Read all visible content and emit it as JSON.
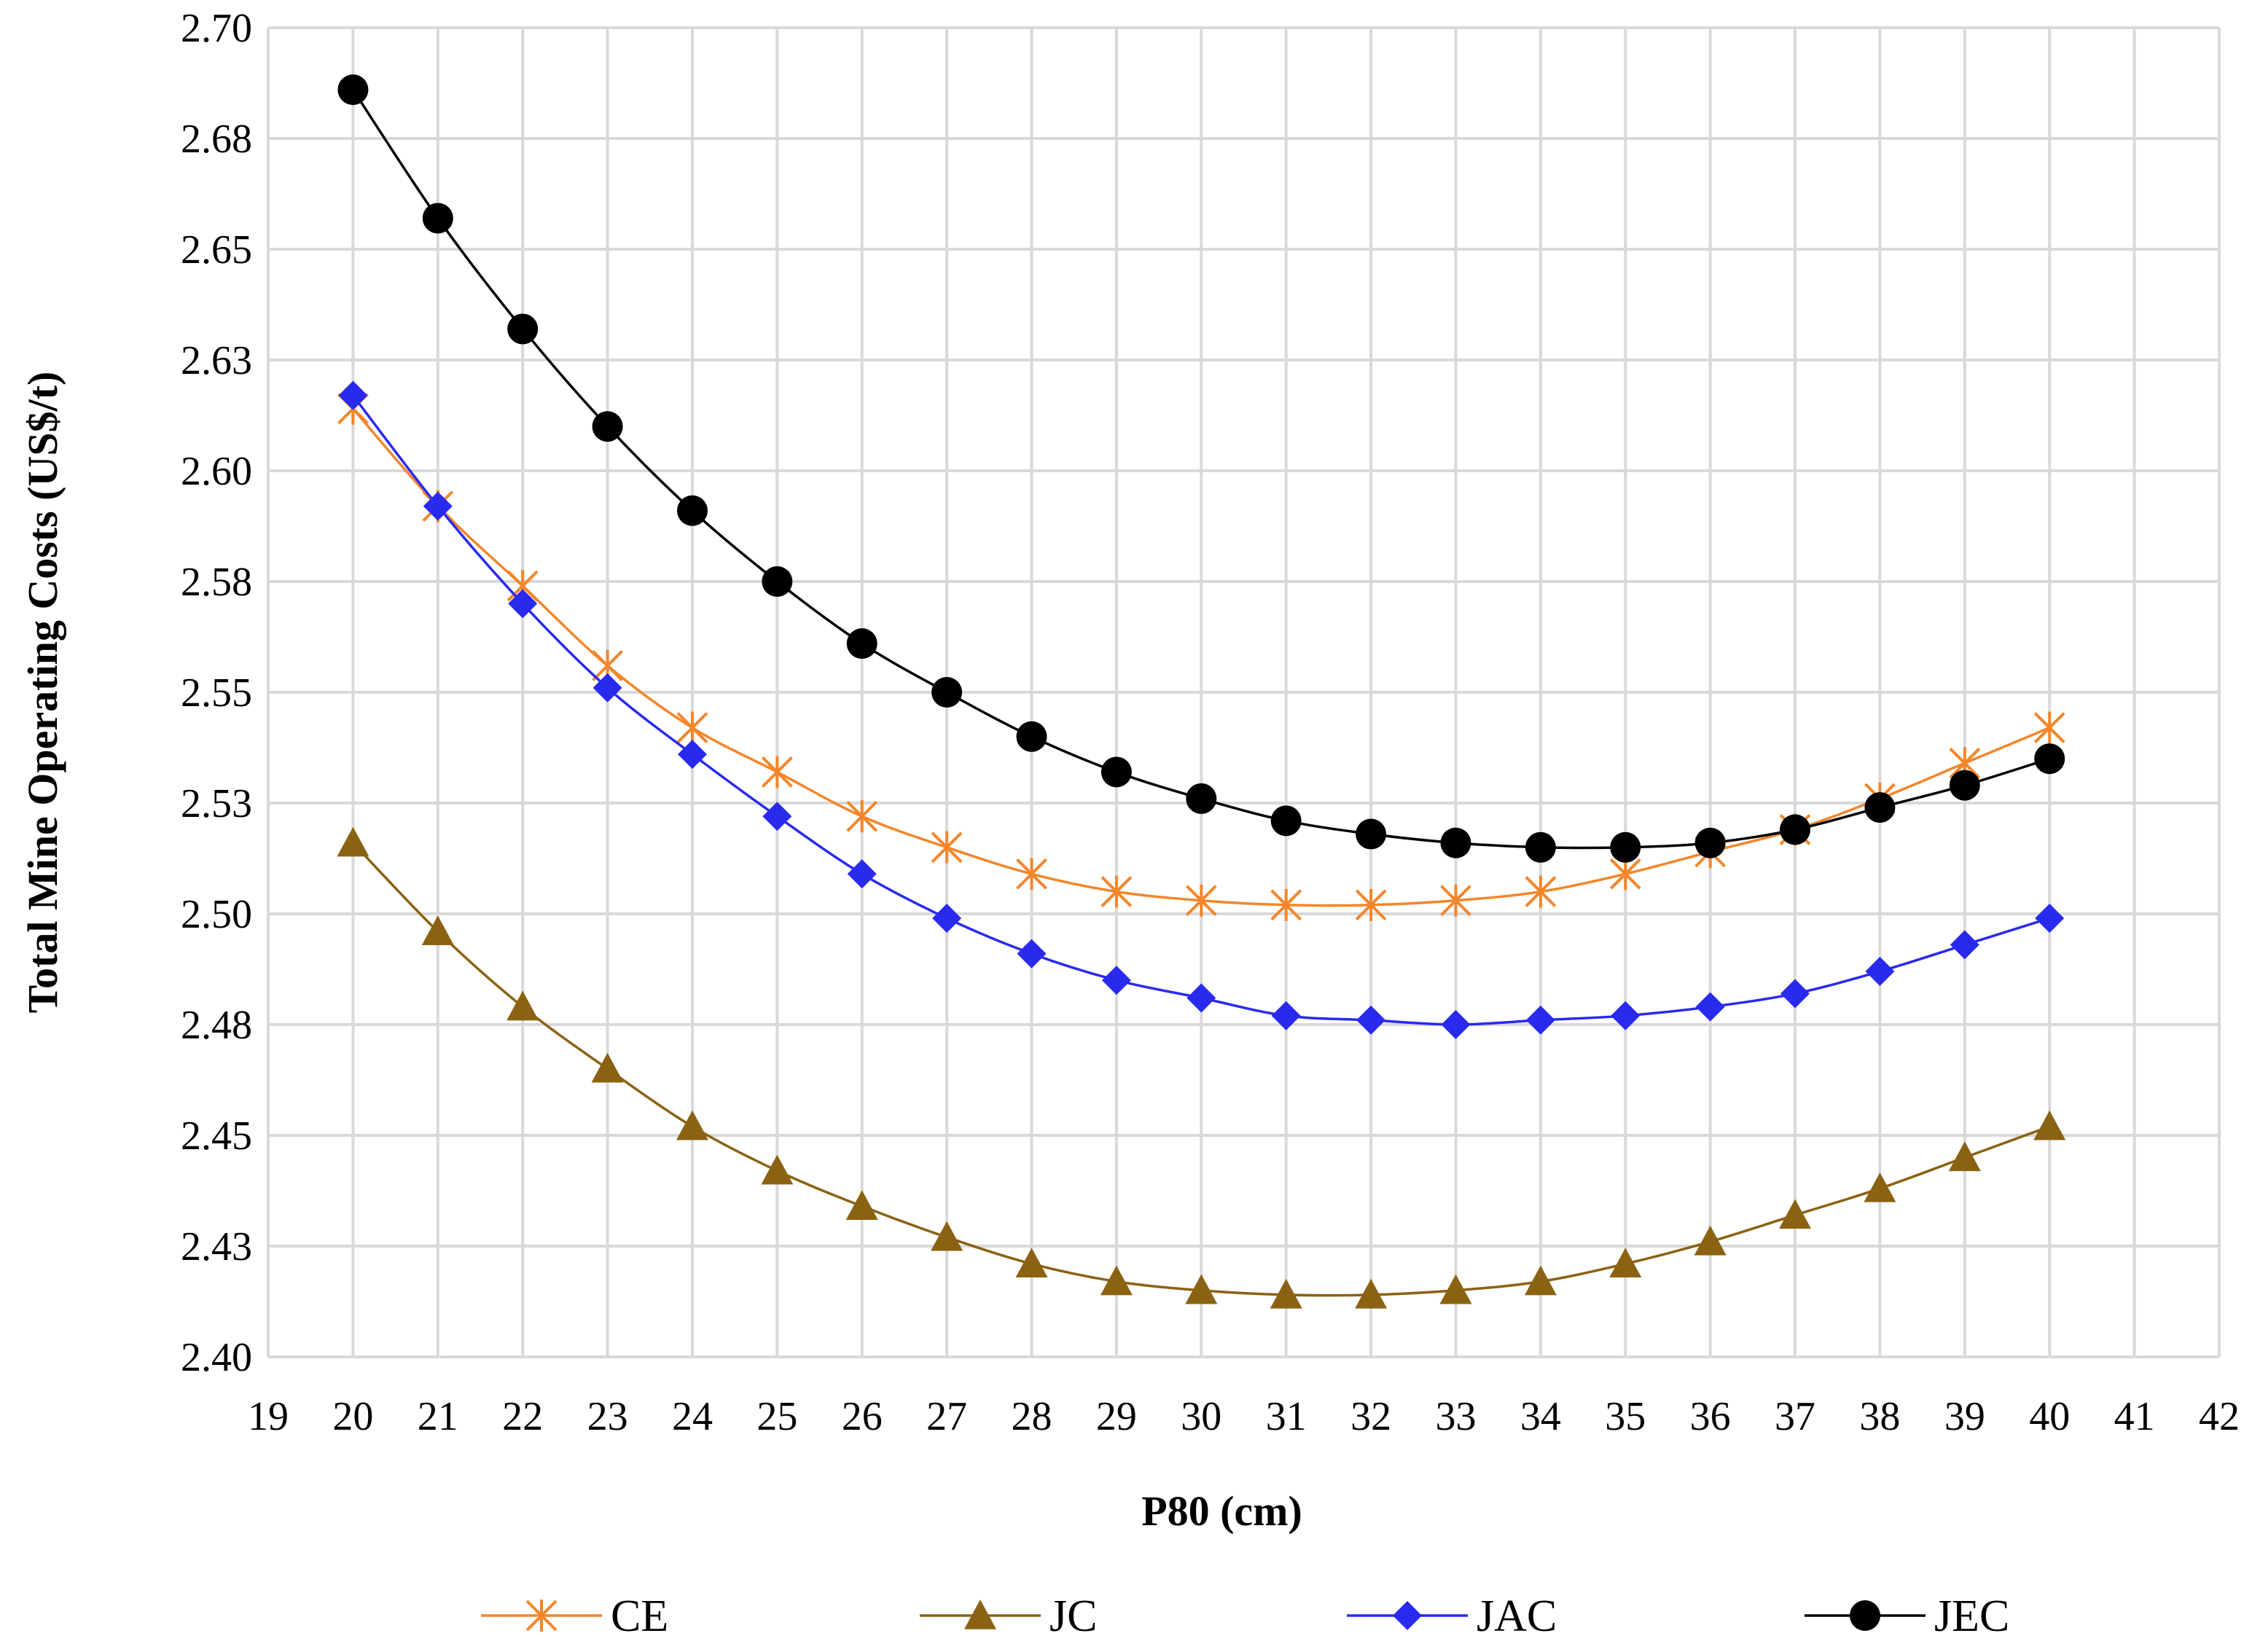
{
  "chart_data": {
    "type": "line",
    "title": "",
    "xlabel": "P80 (cm)",
    "ylabel": "Total Mine Operating Costs (US$/t)",
    "xlim": [
      19,
      42
    ],
    "ylim": [
      2.4,
      2.7
    ],
    "xticks": [
      19,
      20,
      21,
      22,
      23,
      24,
      25,
      26,
      27,
      28,
      29,
      30,
      31,
      32,
      33,
      34,
      35,
      36,
      37,
      38,
      39,
      40,
      41,
      42
    ],
    "yticks": [
      2.4,
      2.425,
      2.45,
      2.475,
      2.5,
      2.525,
      2.55,
      2.575,
      2.6,
      2.625,
      2.65,
      2.675,
      2.7
    ],
    "ytick_labels": [
      "2.40",
      "2.43",
      "2.45",
      "2.48",
      "2.50",
      "2.53",
      "2.55",
      "2.58",
      "2.60",
      "2.63",
      "2.65",
      "2.68",
      "2.70"
    ],
    "grid": true,
    "legend_position": "bottom",
    "x": [
      20,
      21,
      22,
      23,
      24,
      25,
      26,
      27,
      28,
      29,
      30,
      31,
      32,
      33,
      34,
      35,
      36,
      37,
      38,
      39,
      40
    ],
    "series": [
      {
        "name": "CE",
        "color": "#f4862a",
        "marker": "star",
        "values": [
          2.614,
          2.592,
          2.574,
          2.556,
          2.542,
          2.532,
          2.522,
          2.515,
          2.509,
          2.505,
          2.503,
          2.502,
          2.502,
          2.503,
          2.505,
          2.509,
          2.514,
          2.519,
          2.526,
          2.534,
          2.542
        ]
      },
      {
        "name": "JC",
        "color": "#8b6212",
        "marker": "triangle",
        "values": [
          2.516,
          2.496,
          2.479,
          2.465,
          2.452,
          2.442,
          2.434,
          2.427,
          2.421,
          2.417,
          2.415,
          2.414,
          2.414,
          2.415,
          2.417,
          2.421,
          2.426,
          2.432,
          2.438,
          2.445,
          2.452
        ]
      },
      {
        "name": "JAC",
        "color": "#2a2aee",
        "marker": "diamond",
        "values": [
          2.617,
          2.592,
          2.57,
          2.551,
          2.536,
          2.522,
          2.509,
          2.499,
          2.491,
          2.485,
          2.481,
          2.477,
          2.476,
          2.475,
          2.476,
          2.477,
          2.479,
          2.482,
          2.487,
          2.493,
          2.499
        ]
      },
      {
        "name": "JEC",
        "color": "#000000",
        "marker": "circle",
        "values": [
          2.686,
          2.657,
          2.632,
          2.61,
          2.591,
          2.575,
          2.561,
          2.55,
          2.54,
          2.532,
          2.526,
          2.521,
          2.518,
          2.516,
          2.515,
          2.515,
          2.516,
          2.519,
          2.524,
          2.529,
          2.535
        ]
      }
    ]
  }
}
